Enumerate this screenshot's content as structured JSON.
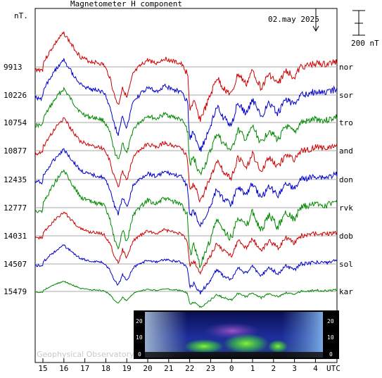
{
  "chart_data": {
    "type": "line",
    "title": "Magnetometer H component",
    "date_label": "02.may 2025",
    "unit_label": "nT.",
    "scale_bar_label": "200 nT",
    "xlabel": "UTC",
    "x_ticks": [
      "15",
      "16",
      "17",
      "18",
      "19",
      "20",
      "21",
      "22",
      "23",
      "0",
      "1",
      "2",
      "3",
      "4"
    ],
    "stations": [
      {
        "name": "nor",
        "baseline": "9913",
        "color": "#cc0000"
      },
      {
        "name": "sor",
        "baseline": "10226",
        "color": "#0000cc"
      },
      {
        "name": "tro",
        "baseline": "10754",
        "color": "#008800"
      },
      {
        "name": "and",
        "baseline": "10877",
        "color": "#cc0000"
      },
      {
        "name": "don",
        "baseline": "12435",
        "color": "#0000cc"
      },
      {
        "name": "rvk",
        "baseline": "12777",
        "color": "#008800"
      },
      {
        "name": "dob",
        "baseline": "14031",
        "color": "#cc0000"
      },
      {
        "name": "sol",
        "baseline": "14507",
        "color": "#0000cc"
      },
      {
        "name": "kar",
        "baseline": "15479",
        "color": "#008800"
      }
    ],
    "keogram": {
      "left_ticks": [
        "20",
        "10",
        "0"
      ],
      "right_ticks": [
        "20",
        "10",
        "0"
      ]
    },
    "watermark": "Geophysical Observatory"
  }
}
